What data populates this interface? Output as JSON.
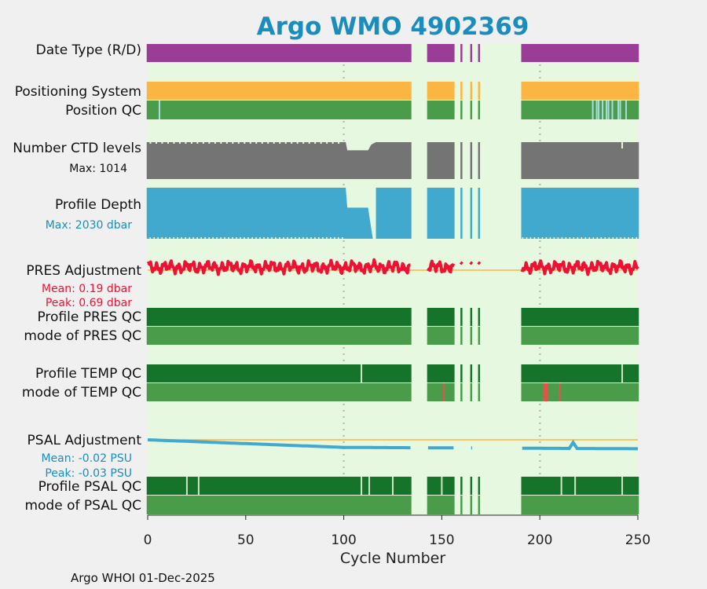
{
  "title": "Argo WMO 4902369",
  "footer": "Argo WHOI 01-Dec-2025",
  "colors": {
    "background": "#f0f0f0",
    "plot_bg": "#e6f9e0",
    "title": "#1a8dbd",
    "purple": "#9a3d96",
    "orange": "#fbb542",
    "green_med": "#4a9c4a",
    "green_dark": "#16742a",
    "gap_light": "#a7dbe0",
    "gray": "#747474",
    "blue": "#41a9ce",
    "red": "#ee1133",
    "red_mark": "#e8514a",
    "pale": "#cfe6c3",
    "zero_line": "#fbb542"
  },
  "row_labels": {
    "date_type": "Date Type (R/D)",
    "positioning": "Positioning System",
    "position_qc": "Position QC",
    "ctd_levels": "Number CTD levels",
    "ctd_max": "Max: 1014",
    "profile_depth": "Profile Depth",
    "depth_max": "Max: 2030 dbar",
    "pres_adj": "PRES Adjustment",
    "pres_mean": "Mean: 0.19 dbar",
    "pres_peak": "Peak: 0.69 dbar",
    "profile_pres_qc": "Profile PRES QC",
    "mode_pres_qc": "mode of PRES QC",
    "profile_temp_qc": "Profile TEMP QC",
    "mode_temp_qc": "mode of TEMP QC",
    "psal_adj": "PSAL Adjustment",
    "psal_mean": "Mean: -0.02 PSU",
    "psal_peak": "Peak: -0.03 PSU",
    "profile_psal_qc": "Profile PSAL QC",
    "mode_psal_qc": "mode of PSAL QC"
  },
  "chart_data": {
    "type": "timeline",
    "xlabel": "Cycle Number",
    "xlim": [
      0,
      250
    ],
    "xticks": [
      "0",
      "50",
      "100",
      "150",
      "200",
      "250"
    ],
    "reference_cycles": [
      100,
      200
    ],
    "cycles_with_data": [
      [
        0,
        134
      ],
      [
        143,
        156
      ],
      [
        160,
        160
      ],
      [
        165,
        165
      ],
      [
        169,
        169
      ],
      [
        191,
        250
      ]
    ],
    "position_qc_bad_cycles": [
      6,
      227,
      229,
      230,
      232,
      234,
      235,
      237,
      240,
      241,
      244
    ],
    "temp_profile_qc_flags": [
      109,
      242
    ],
    "temp_mode_qc_bad_cycles": [
      151,
      202,
      203,
      204,
      210
    ],
    "psal_profile_qc_flags": [
      20,
      26,
      109,
      113,
      125,
      150,
      211,
      218,
      242
    ],
    "ctd_levels": {
      "max": 1014,
      "typical": 1000,
      "dip_cycles": [
        101,
        114
      ],
      "dip_value": 780,
      "bad_cycle": 242
    },
    "profile_depth": {
      "max_dbar": 2030,
      "typical_dbar": 2000,
      "dip_cycles": [
        101,
        114
      ],
      "dip_dbar": 500
    },
    "pres_adjustment": {
      "unit": "dbar",
      "mean": 0.19,
      "peak": 0.69
    },
    "psal_adjustment": {
      "unit": "PSU",
      "mean": -0.02,
      "peak": -0.03,
      "start": 0.0,
      "end": -0.03,
      "spike_cycle": 217
    }
  }
}
